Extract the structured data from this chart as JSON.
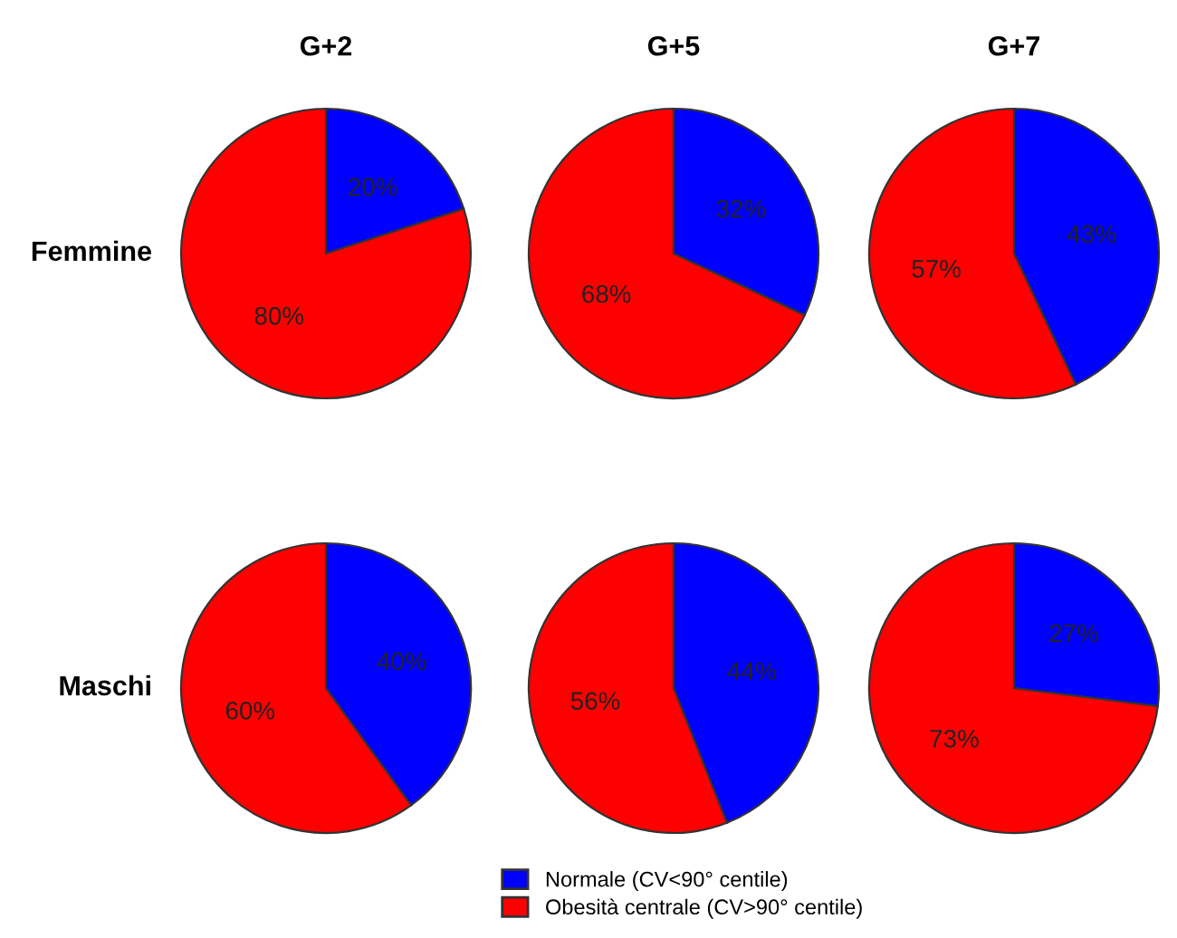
{
  "chart_data": [
    {
      "type": "pie",
      "title": "G+2",
      "ylabel": "Femmine",
      "categories": [
        "Normale (CV<90° centile)",
        "Obesità centrale (CV>90° centile)"
      ],
      "values": [
        20,
        80
      ],
      "colors": [
        "#0000ff",
        "#ff0000"
      ],
      "value_labels": [
        "20%",
        "80%"
      ],
      "legend": "bottom"
    },
    {
      "type": "pie",
      "title": "G+5",
      "categories": [
        null,
        null
      ],
      "values": [
        32,
        68
      ],
      "colors": [
        "#0000ff",
        "#ff0000"
      ],
      "value_labels": [
        "32%",
        "68%"
      ]
    },
    {
      "type": "pie",
      "title": "G+7",
      "categories": [
        null,
        null
      ],
      "values": [
        43,
        57
      ],
      "colors": [
        "#0000ff",
        "#ff0000"
      ],
      "value_labels": [
        "43%",
        "57%"
      ]
    },
    {
      "type": "pie",
      "ylabel": "Maschi",
      "categories": [
        null,
        null
      ],
      "values": [
        40,
        60
      ],
      "colors": [
        "#0000ff",
        "#ff0000"
      ],
      "value_labels": [
        "40%",
        "60%"
      ]
    },
    {
      "type": "pie",
      "categories": [
        null,
        null
      ],
      "values": [
        44,
        56
      ],
      "colors": [
        "#0000ff",
        "#ff0000"
      ],
      "value_labels": [
        "44%",
        "56%"
      ]
    },
    {
      "type": "pie",
      "categories": [
        null,
        null
      ],
      "values": [
        27,
        73
      ],
      "colors": [
        "#0000ff",
        "#ff0000"
      ],
      "value_labels": [
        "27%",
        "73%"
      ]
    }
  ]
}
